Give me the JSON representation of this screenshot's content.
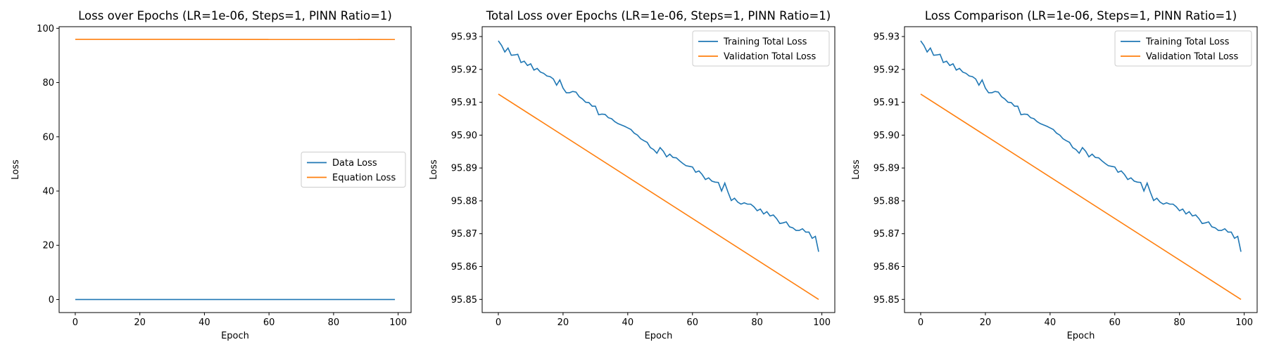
{
  "colors": {
    "series1": "#1f77b4",
    "series2": "#ff7f0e"
  },
  "chart_data": [
    {
      "type": "line",
      "title": "Loss over Epochs (LR=1e-06, Steps=1, PINN Ratio=1)",
      "xlabel": "Epoch",
      "ylabel": "Loss",
      "xlim": [
        -5,
        104
      ],
      "ylim": [
        -4.8,
        100.6
      ],
      "xticks": [
        0,
        20,
        40,
        60,
        80,
        100
      ],
      "yticks": [
        0,
        20,
        40,
        60,
        80,
        100
      ],
      "ytick_labels": [
        "0",
        "20",
        "40",
        "60",
        "80",
        "100"
      ],
      "legend": "center-right",
      "grid": false,
      "series": [
        {
          "name": "Data Loss",
          "color": "#1f77b4",
          "x": [
            0,
            99
          ],
          "y": [
            0.0,
            0.0
          ]
        },
        {
          "name": "Equation Loss",
          "color": "#ff7f0e",
          "x": [
            0,
            99
          ],
          "y": [
            95.93,
            95.87
          ]
        }
      ]
    },
    {
      "type": "line",
      "title": "Total Loss over Epochs (LR=1e-06, Steps=1, PINN Ratio=1)",
      "xlabel": "Epoch",
      "ylabel": "Loss",
      "xlim": [
        -5,
        104
      ],
      "ylim": [
        95.846,
        95.933
      ],
      "xticks": [
        0,
        20,
        40,
        60,
        80,
        100
      ],
      "yticks": [
        95.85,
        95.86,
        95.87,
        95.88,
        95.89,
        95.9,
        95.91,
        95.92,
        95.93
      ],
      "ytick_labels": [
        "95.85",
        "95.86",
        "95.87",
        "95.88",
        "95.89",
        "95.90",
        "95.91",
        "95.92",
        "95.93"
      ],
      "legend": "top-right",
      "grid": false,
      "series": [
        {
          "name": "Training Total Loss",
          "color": "#1f77b4",
          "x": [
            0,
            1,
            2,
            3,
            4,
            5,
            6,
            7,
            8,
            9,
            10,
            11,
            12,
            13,
            14,
            15,
            16,
            17,
            18,
            19,
            20,
            21,
            22,
            23,
            24,
            25,
            26,
            27,
            28,
            29,
            30,
            31,
            32,
            33,
            34,
            35,
            36,
            37,
            38,
            39,
            40,
            41,
            42,
            43,
            44,
            45,
            46,
            47,
            48,
            49,
            50,
            51,
            52,
            53,
            54,
            55,
            56,
            57,
            58,
            59,
            60,
            61,
            62,
            63,
            64,
            65,
            66,
            67,
            68,
            69,
            70,
            71,
            72,
            73,
            74,
            75,
            76,
            77,
            78,
            79,
            80,
            81,
            82,
            83,
            84,
            85,
            86,
            87,
            88,
            89,
            90,
            91,
            92,
            93,
            94,
            95,
            96,
            97,
            98,
            99
          ],
          "y": [
            95.9287,
            95.9273,
            95.9253,
            95.9265,
            95.9243,
            95.9244,
            95.9246,
            95.9221,
            95.9225,
            95.9212,
            95.9217,
            95.9198,
            95.9203,
            95.9192,
            95.9188,
            95.918,
            95.9178,
            95.9171,
            95.9152,
            95.9168,
            95.9143,
            95.9129,
            95.9129,
            95.9133,
            95.9131,
            95.9117,
            95.911,
            95.91,
            95.9099,
            95.9088,
            95.9088,
            95.9062,
            95.9064,
            95.9063,
            95.9053,
            95.905,
            95.9041,
            95.9035,
            95.9031,
            95.9027,
            95.9022,
            95.9017,
            95.9006,
            95.9,
            95.8989,
            95.8983,
            95.8978,
            95.8962,
            95.8956,
            95.8945,
            95.8962,
            95.8951,
            95.8934,
            95.8942,
            95.8932,
            95.8931,
            95.8922,
            95.8914,
            95.8907,
            95.8905,
            95.8903,
            95.8887,
            95.8891,
            95.888,
            95.8865,
            95.887,
            95.886,
            95.8857,
            95.8856,
            95.883,
            95.8854,
            95.8826,
            95.8801,
            95.8808,
            95.8796,
            95.879,
            95.8794,
            95.879,
            95.879,
            95.8782,
            95.877,
            95.8775,
            95.876,
            95.8767,
            95.8754,
            95.8757,
            95.8746,
            95.8731,
            95.8733,
            95.8736,
            95.8721,
            95.8718,
            95.871,
            95.871,
            95.8715,
            95.8705,
            95.8705,
            95.8686,
            95.8692,
            95.8645
          ]
        },
        {
          "name": "Validation Total Loss",
          "color": "#ff7f0e",
          "x": [
            0,
            99
          ],
          "y": [
            95.9125,
            95.85
          ]
        }
      ]
    },
    {
      "type": "line",
      "title": "Loss Comparison (LR=1e-06, Steps=1, PINN Ratio=1)",
      "xlabel": "Epoch",
      "ylabel": "Loss",
      "xlim": [
        -5,
        104
      ],
      "ylim": [
        95.846,
        95.933
      ],
      "xticks": [
        0,
        20,
        40,
        60,
        80,
        100
      ],
      "yticks": [
        95.85,
        95.86,
        95.87,
        95.88,
        95.89,
        95.9,
        95.91,
        95.92,
        95.93
      ],
      "ytick_labels": [
        "95.85",
        "95.86",
        "95.87",
        "95.88",
        "95.89",
        "95.90",
        "95.91",
        "95.92",
        "95.93"
      ],
      "legend": "top-right",
      "grid": false,
      "series": [
        {
          "name": "Training Total Loss",
          "color": "#1f77b4",
          "x": [
            0,
            1,
            2,
            3,
            4,
            5,
            6,
            7,
            8,
            9,
            10,
            11,
            12,
            13,
            14,
            15,
            16,
            17,
            18,
            19,
            20,
            21,
            22,
            23,
            24,
            25,
            26,
            27,
            28,
            29,
            30,
            31,
            32,
            33,
            34,
            35,
            36,
            37,
            38,
            39,
            40,
            41,
            42,
            43,
            44,
            45,
            46,
            47,
            48,
            49,
            50,
            51,
            52,
            53,
            54,
            55,
            56,
            57,
            58,
            59,
            60,
            61,
            62,
            63,
            64,
            65,
            66,
            67,
            68,
            69,
            70,
            71,
            72,
            73,
            74,
            75,
            76,
            77,
            78,
            79,
            80,
            81,
            82,
            83,
            84,
            85,
            86,
            87,
            88,
            89,
            90,
            91,
            92,
            93,
            94,
            95,
            96,
            97,
            98,
            99
          ],
          "y": [
            95.9287,
            95.9273,
            95.9253,
            95.9265,
            95.9243,
            95.9244,
            95.9246,
            95.9221,
            95.9225,
            95.9212,
            95.9217,
            95.9198,
            95.9203,
            95.9192,
            95.9188,
            95.918,
            95.9178,
            95.9171,
            95.9152,
            95.9168,
            95.9143,
            95.9129,
            95.9129,
            95.9133,
            95.9131,
            95.9117,
            95.911,
            95.91,
            95.9099,
            95.9088,
            95.9088,
            95.9062,
            95.9064,
            95.9063,
            95.9053,
            95.905,
            95.9041,
            95.9035,
            95.9031,
            95.9027,
            95.9022,
            95.9017,
            95.9006,
            95.9,
            95.8989,
            95.8983,
            95.8978,
            95.8962,
            95.8956,
            95.8945,
            95.8962,
            95.8951,
            95.8934,
            95.8942,
            95.8932,
            95.8931,
            95.8922,
            95.8914,
            95.8907,
            95.8905,
            95.8903,
            95.8887,
            95.8891,
            95.888,
            95.8865,
            95.887,
            95.886,
            95.8857,
            95.8856,
            95.883,
            95.8854,
            95.8826,
            95.8801,
            95.8808,
            95.8796,
            95.879,
            95.8794,
            95.879,
            95.879,
            95.8782,
            95.877,
            95.8775,
            95.876,
            95.8767,
            95.8754,
            95.8757,
            95.8746,
            95.8731,
            95.8733,
            95.8736,
            95.8721,
            95.8718,
            95.871,
            95.871,
            95.8715,
            95.8705,
            95.8705,
            95.8686,
            95.8692,
            95.8645
          ]
        },
        {
          "name": "Validation Total Loss",
          "color": "#ff7f0e",
          "x": [
            0,
            99
          ],
          "y": [
            95.9125,
            95.85
          ]
        }
      ]
    }
  ]
}
